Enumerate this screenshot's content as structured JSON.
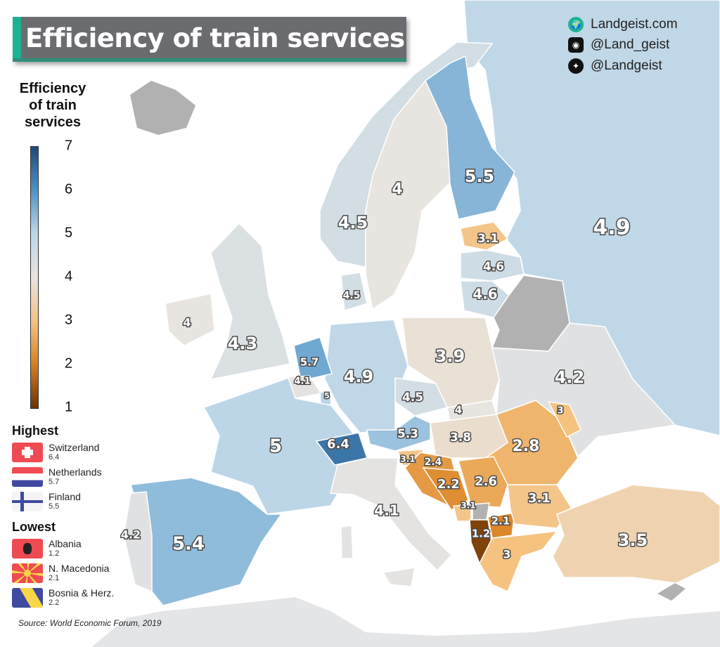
{
  "header": {
    "title": "Efficiency of train services"
  },
  "social": {
    "website": "Landgeist.com",
    "instagram": "@Land_geist",
    "twitter": "@Landgeist",
    "icons": [
      "globe-icon",
      "instagram-icon",
      "twitter-icon"
    ]
  },
  "legend": {
    "title_lines": [
      "Efficiency",
      "of train",
      "services"
    ],
    "ticks": [
      "7",
      "6",
      "5",
      "4",
      "3",
      "2",
      "1"
    ],
    "scale_range": [
      1,
      7
    ],
    "scale_colors": [
      "#6a3206",
      "#d9801f",
      "#f5c27f",
      "#e8e4e0",
      "#bcd6e8",
      "#4f94c8",
      "#1c4a78"
    ],
    "no_data_color": "#b1b1b1"
  },
  "highest": {
    "heading": "Highest",
    "items": [
      {
        "name": "Switzerland",
        "value": "6.4"
      },
      {
        "name": "Netherlands",
        "value": "5.7"
      },
      {
        "name": "Finland",
        "value": "5.5"
      }
    ]
  },
  "lowest": {
    "heading": "Lowest",
    "items": [
      {
        "name": "Albania",
        "value": "1.2"
      },
      {
        "name": "N. Macedonia",
        "value": "2.1"
      },
      {
        "name": "Bosnia & Herz.",
        "value": "2.2"
      }
    ]
  },
  "source": "Source: World Economic Forum, 2019",
  "map": {
    "russia": "4.9",
    "finland": "5.5",
    "sweden": "4",
    "norway": "4.5",
    "estonia": "3.1",
    "latvia": "4.6",
    "lithuania": "4.6",
    "denmark": "4.5",
    "ireland": "4",
    "uk": "4.3",
    "netherlands": "5.7",
    "belgium": "4.1",
    "luxembourg": "5",
    "france": "5",
    "switzerland": "6.4",
    "germany": "4.9",
    "czechia": "4.5",
    "poland": "3.9",
    "austria": "5.3",
    "slovakia": "4",
    "hungary": "3.8",
    "ukraine": "4.2",
    "romania": "2.8",
    "moldova": "3",
    "slovenia": "3.1",
    "croatia": "2.4",
    "bosnia": "2.2",
    "serbia": "2.6",
    "montenegro": "3.1",
    "albania": "1.2",
    "north_macedonia": "2.1",
    "bulgaria": "3.1",
    "greece": "3",
    "turkey": "3.5",
    "italy": "4.1",
    "spain": "5.4",
    "portugal": "4.2"
  }
}
